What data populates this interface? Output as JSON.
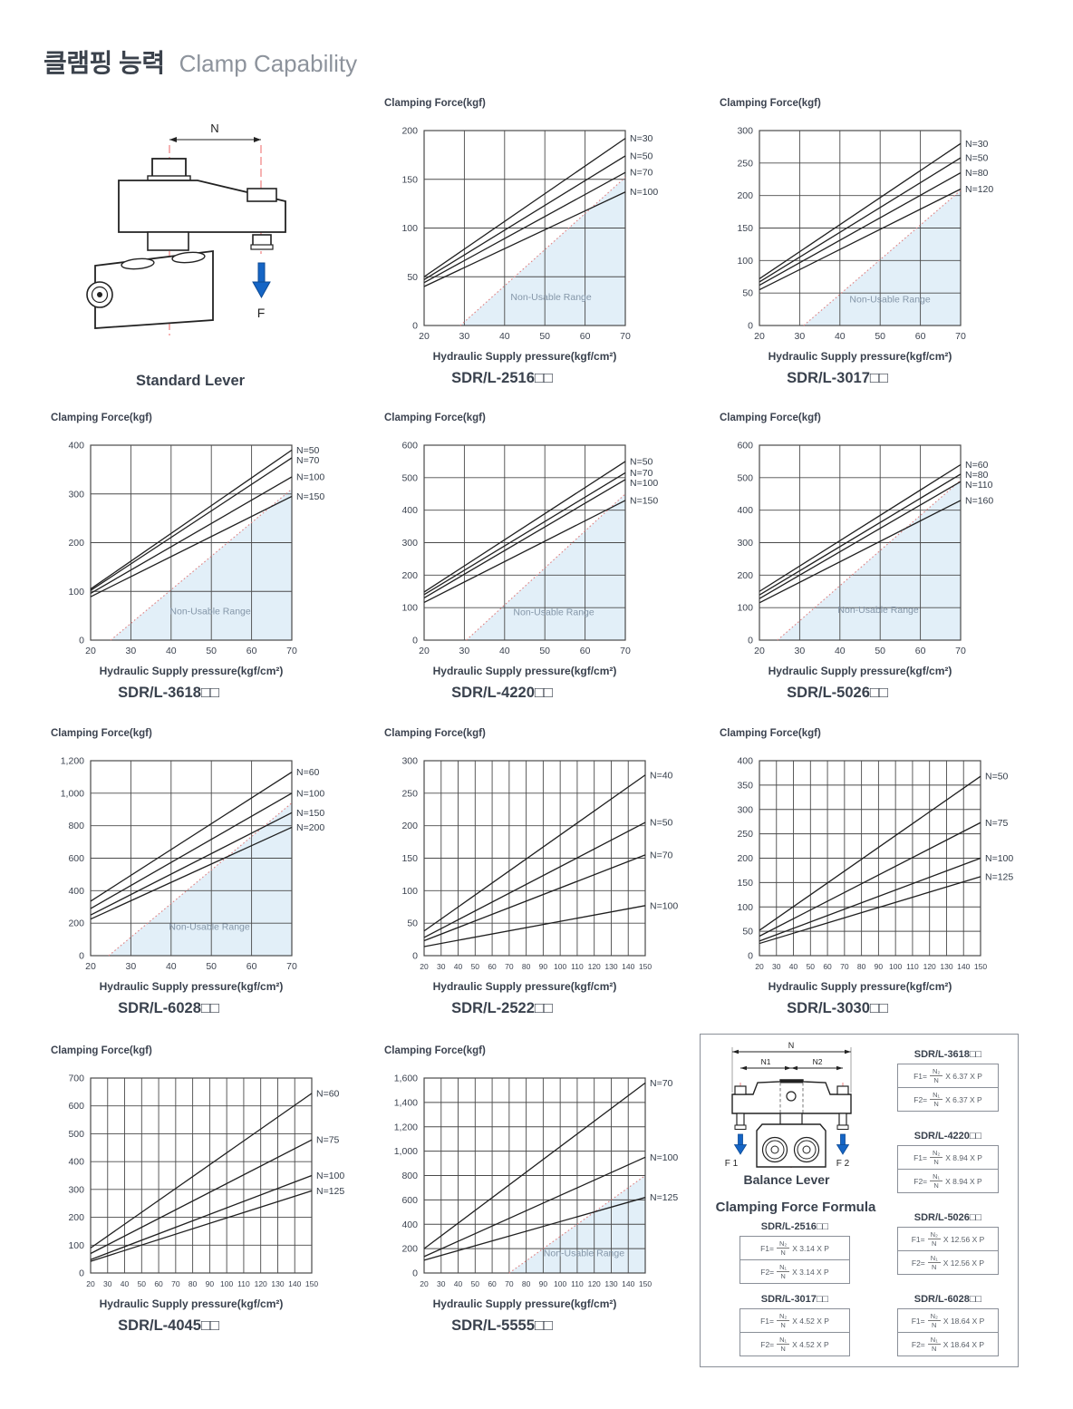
{
  "page": {
    "title_ko": "클램핑 능력",
    "title_en": "Clamp Capability"
  },
  "colors": {
    "grid": "#4a4a4a",
    "series": "#1f1f1f",
    "tick_text": "#3c4350",
    "series_label_text": "#333c48",
    "non_usable_fill": "#e2eff8",
    "non_usable_text": "#8496a8",
    "dotted_line": "#df8282",
    "diagram_red": "#ef8080",
    "arrow_blue": "#1565c5",
    "heading_dark": "#39414d",
    "heading_gray": "#8d939c"
  },
  "standard_lever": {
    "caption": "Standard Lever",
    "dim_label": "N",
    "force_label": "F"
  },
  "balance_lever": {
    "caption": "Balance Lever",
    "dim_n": "N",
    "dim_n1": "N1",
    "dim_n2": "N2",
    "force_left": "F 1",
    "force_right": "F 2"
  },
  "formula_panel": {
    "heading": "Clamping Force Formula",
    "f1_lhs": "F1=",
    "f2_lhs": "F2=",
    "f1_num": "N₂",
    "f2_num": "N₁",
    "den": "N",
    "tables": [
      {
        "model": "SDR/L-2516□□",
        "rhs": "X 3.14 X P"
      },
      {
        "model": "SDR/L-3017□□",
        "rhs": "X 4.52 X P"
      },
      {
        "model": "SDR/L-3618□□",
        "rhs": "X 6.37 X P"
      },
      {
        "model": "SDR/L-4220□□",
        "rhs": "X 8.94 X P"
      },
      {
        "model": "SDR/L-5026□□",
        "rhs": "X 12.56 X P"
      },
      {
        "model": "SDR/L-6028□□",
        "rhs": "X 18.64 X P"
      }
    ]
  },
  "chart_data": [
    {
      "type": "line",
      "model": "SDR/L-2516□□",
      "ylabel": "Clamping Force(kgf)",
      "xlabel": "Hydraulic Supply pressure(kgf/cm²)",
      "x_range": [
        20,
        70
      ],
      "y_range": [
        0,
        200
      ],
      "xticks": [
        20,
        30,
        40,
        50,
        60,
        70
      ],
      "yticks": [
        0,
        50,
        100,
        150,
        200
      ],
      "series": [
        {
          "name": "N=30",
          "x": [
            20,
            70
          ],
          "y": [
            50,
            192
          ]
        },
        {
          "name": "N=50",
          "x": [
            20,
            70
          ],
          "y": [
            47,
            174
          ]
        },
        {
          "name": "N=70",
          "x": [
            20,
            70
          ],
          "y": [
            44,
            157
          ]
        },
        {
          "name": "N=100",
          "x": [
            20,
            70
          ],
          "y": [
            40,
            137
          ]
        }
      ],
      "non_usable": {
        "label": "Non-Usable Range",
        "line": [
          [
            29,
            0
          ],
          [
            70,
            152
          ]
        ]
      }
    },
    {
      "type": "line",
      "model": "SDR/L-3017□□",
      "ylabel": "Clamping Force(kgf)",
      "xlabel": "Hydraulic Supply pressure(kgf/cm²)",
      "x_range": [
        20,
        70
      ],
      "y_range": [
        0,
        300
      ],
      "xticks": [
        20,
        30,
        40,
        50,
        60,
        70
      ],
      "yticks": [
        0,
        50,
        100,
        150,
        200,
        250,
        300
      ],
      "series": [
        {
          "name": "N=30",
          "x": [
            20,
            70
          ],
          "y": [
            72,
            280
          ]
        },
        {
          "name": "N=50",
          "x": [
            20,
            70
          ],
          "y": [
            67,
            258
          ]
        },
        {
          "name": "N=80",
          "x": [
            20,
            70
          ],
          "y": [
            62,
            235
          ]
        },
        {
          "name": "N=120",
          "x": [
            20,
            70
          ],
          "y": [
            55,
            210
          ]
        }
      ],
      "non_usable": {
        "label": "Non-Usable Range",
        "line": [
          [
            31,
            0
          ],
          [
            70,
            208
          ]
        ]
      }
    },
    {
      "type": "line",
      "model": "SDR/L-3618□□",
      "ylabel": "Clamping Force(kgf)",
      "xlabel": "Hydraulic Supply pressure(kgf/cm²)",
      "x_range": [
        20,
        70
      ],
      "y_range": [
        0,
        400
      ],
      "xticks": [
        20,
        30,
        40,
        50,
        60,
        70
      ],
      "yticks": [
        0,
        100,
        200,
        300,
        400
      ],
      "series": [
        {
          "name": "N=50",
          "x": [
            20,
            70
          ],
          "y": [
            105,
            390
          ]
        },
        {
          "name": "N=70",
          "x": [
            20,
            70
          ],
          "y": [
            102,
            374
          ]
        },
        {
          "name": "N=100",
          "x": [
            20,
            70
          ],
          "y": [
            96,
            335
          ]
        },
        {
          "name": "N=150",
          "x": [
            20,
            70
          ],
          "y": [
            89,
            295
          ]
        }
      ],
      "non_usable": {
        "label": "Non-Usable Range",
        "line": [
          [
            25,
            0
          ],
          [
            70,
            310
          ]
        ]
      }
    },
    {
      "type": "line",
      "model": "SDR/L-4220□□",
      "ylabel": "Clamping Force(kgf)",
      "xlabel": "Hydraulic Supply pressure(kgf/cm²)",
      "x_range": [
        20,
        70
      ],
      "y_range": [
        0,
        600
      ],
      "xticks": [
        20,
        30,
        40,
        50,
        60,
        70
      ],
      "yticks": [
        0,
        100,
        200,
        300,
        400,
        500,
        600
      ],
      "series": [
        {
          "name": "N=50",
          "x": [
            20,
            70
          ],
          "y": [
            148,
            550
          ]
        },
        {
          "name": "N=70",
          "x": [
            20,
            70
          ],
          "y": [
            140,
            515
          ]
        },
        {
          "name": "N=100",
          "x": [
            20,
            70
          ],
          "y": [
            130,
            494
          ]
        },
        {
          "name": "N=150",
          "x": [
            20,
            70
          ],
          "y": [
            116,
            430
          ]
        }
      ],
      "non_usable": {
        "label": "Non-Usable Range",
        "line": [
          [
            30.5,
            0
          ],
          [
            70,
            450
          ]
        ]
      }
    },
    {
      "type": "line",
      "model": "SDR/L-5026□□",
      "ylabel": "Clamping Force(kgf)",
      "xlabel": "Hydraulic Supply pressure(kgf/cm²)",
      "x_range": [
        20,
        70
      ],
      "y_range": [
        0,
        600
      ],
      "xticks": [
        20,
        30,
        40,
        50,
        60,
        70
      ],
      "yticks": [
        0,
        100,
        200,
        300,
        400,
        500,
        600
      ],
      "series": [
        {
          "name": "N=60",
          "x": [
            20,
            70
          ],
          "y": [
            150,
            540
          ]
        },
        {
          "name": "N=80",
          "x": [
            20,
            70
          ],
          "y": [
            139,
            511
          ]
        },
        {
          "name": "N=110",
          "x": [
            20,
            70
          ],
          "y": [
            128,
            488
          ]
        },
        {
          "name": "N=160",
          "x": [
            20,
            70
          ],
          "y": [
            115,
            430
          ]
        }
      ],
      "non_usable": {
        "label": "Non-Usable Range",
        "line": [
          [
            24.5,
            0
          ],
          [
            70,
            492
          ]
        ]
      }
    },
    {
      "type": "line",
      "model": "SDR/L-6028□□",
      "ylabel": "Clamping Force(kgf)",
      "xlabel": "Hydraulic Supply pressure(kgf/cm²)",
      "x_range": [
        20,
        70
      ],
      "y_range": [
        0,
        1200
      ],
      "xticks": [
        20,
        30,
        40,
        50,
        60,
        70
      ],
      "yticks": [
        0,
        200,
        400,
        600,
        800,
        1000,
        1200
      ],
      "series": [
        {
          "name": "N=60",
          "x": [
            20,
            70
          ],
          "y": [
            335,
            1130
          ]
        },
        {
          "name": "N=100",
          "x": [
            20,
            70
          ],
          "y": [
            290,
            1000
          ]
        },
        {
          "name": "N=150",
          "x": [
            20,
            70
          ],
          "y": [
            250,
            880
          ]
        },
        {
          "name": "N=200",
          "x": [
            20,
            70
          ],
          "y": [
            225,
            790
          ]
        }
      ],
      "non_usable": {
        "label": "Non-Usable Range",
        "line": [
          [
            24.5,
            0
          ],
          [
            70,
            940
          ]
        ]
      }
    },
    {
      "type": "line",
      "model": "SDR/L-2522□□",
      "ylabel": "Clamping Force(kgf)",
      "xlabel": "Hydraulic Supply pressure(kgf/cm²)",
      "x_range": [
        20,
        150
      ],
      "y_range": [
        0,
        300
      ],
      "xticks": [
        20,
        30,
        40,
        50,
        60,
        70,
        80,
        90,
        100,
        110,
        120,
        130,
        140,
        150
      ],
      "yticks": [
        0,
        50,
        100,
        150,
        200,
        250,
        300
      ],
      "series": [
        {
          "name": "N=40",
          "x": [
            20,
            150
          ],
          "y": [
            38,
            278
          ]
        },
        {
          "name": "N=50",
          "x": [
            20,
            150
          ],
          "y": [
            28,
            205
          ]
        },
        {
          "name": "N=70",
          "x": [
            20,
            150
          ],
          "y": [
            23,
            155
          ]
        },
        {
          "name": "N=100",
          "x": [
            20,
            150
          ],
          "y": [
            14,
            77
          ]
        }
      ],
      "non_usable": null
    },
    {
      "type": "line",
      "model": "SDR/L-3030□□",
      "ylabel": "Clamping Force(kgf)",
      "xlabel": "Hydraulic Supply pressure(kgf/cm²)",
      "x_range": [
        20,
        150
      ],
      "y_range": [
        0,
        400
      ],
      "xticks": [
        20,
        30,
        40,
        50,
        60,
        70,
        80,
        90,
        100,
        110,
        120,
        130,
        140,
        150
      ],
      "yticks": [
        0,
        50,
        100,
        150,
        200,
        250,
        300,
        350,
        400
      ],
      "series": [
        {
          "name": "N=50",
          "x": [
            20,
            150
          ],
          "y": [
            52,
            368
          ]
        },
        {
          "name": "N=75",
          "x": [
            20,
            150
          ],
          "y": [
            40,
            273
          ]
        },
        {
          "name": "N=100",
          "x": [
            20,
            150
          ],
          "y": [
            30,
            200
          ]
        },
        {
          "name": "N=125",
          "x": [
            20,
            150
          ],
          "y": [
            25,
            162
          ]
        }
      ],
      "non_usable": null
    },
    {
      "type": "line",
      "model": "SDR/L-4045□□",
      "ylabel": "Clamping Force(kgf)",
      "xlabel": "Hydraulic Supply pressure(kgf/cm²)",
      "x_range": [
        20,
        150
      ],
      "y_range": [
        0,
        700
      ],
      "xticks": [
        20,
        30,
        40,
        50,
        60,
        70,
        80,
        90,
        100,
        110,
        120,
        130,
        140,
        150
      ],
      "yticks": [
        0,
        100,
        200,
        300,
        400,
        500,
        600,
        700
      ],
      "series": [
        {
          "name": "N=60",
          "x": [
            20,
            150
          ],
          "y": [
            90,
            645
          ]
        },
        {
          "name": "N=75",
          "x": [
            20,
            150
          ],
          "y": [
            70,
            478
          ]
        },
        {
          "name": "N=100",
          "x": [
            20,
            150
          ],
          "y": [
            48,
            350
          ]
        },
        {
          "name": "N=125",
          "x": [
            20,
            150
          ],
          "y": [
            42,
            295
          ]
        }
      ],
      "non_usable": null
    },
    {
      "type": "line",
      "model": "SDR/L-5555□□",
      "ylabel": "Clamping Force(kgf)",
      "xlabel": "Hydraulic Supply pressure(kgf/cm²)",
      "x_range": [
        20,
        150
      ],
      "y_range": [
        0,
        1600
      ],
      "xticks": [
        20,
        30,
        40,
        50,
        60,
        70,
        80,
        90,
        100,
        110,
        120,
        130,
        140,
        150
      ],
      "yticks": [
        0,
        200,
        400,
        600,
        800,
        1000,
        1200,
        1400,
        1600
      ],
      "series": [
        {
          "name": "N=70",
          "x": [
            20,
            150
          ],
          "y": [
            200,
            1560
          ]
        },
        {
          "name": "N=100",
          "x": [
            20,
            150
          ],
          "y": [
            135,
            950
          ]
        },
        {
          "name": "N=125",
          "x": [
            20,
            150
          ],
          "y": [
            105,
            620
          ]
        }
      ],
      "non_usable": {
        "label": "Non-Usable Range",
        "line": [
          [
            70,
            0
          ],
          [
            150,
            800
          ]
        ]
      }
    }
  ]
}
